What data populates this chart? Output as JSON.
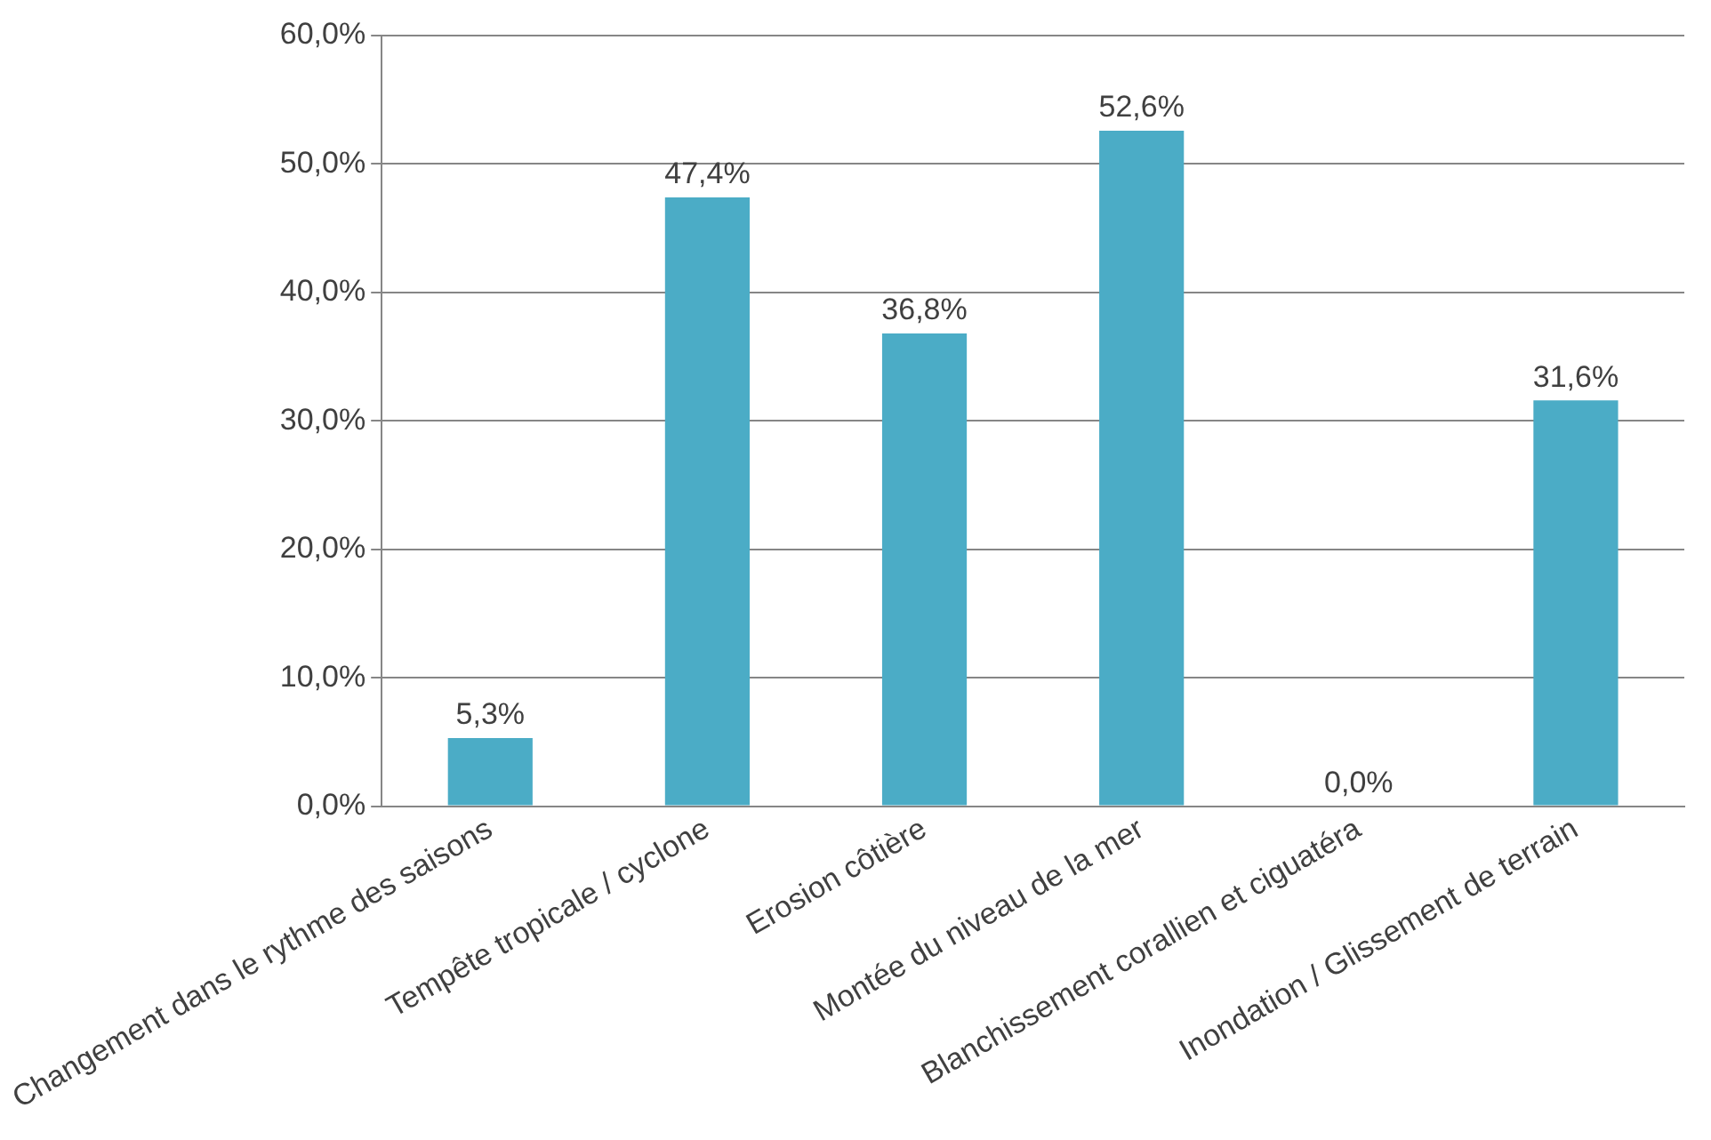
{
  "chart_data": {
    "type": "bar",
    "categories": [
      "Changement dans le rythme des saisons",
      "Tempête tropicale / cyclone",
      "Erosion côtière",
      "Montée du niveau de la mer",
      "Blanchissement corallien et ciguatéra",
      "Inondation / Glissement de terrain"
    ],
    "values": [
      5.3,
      47.4,
      36.8,
      52.6,
      0.0,
      31.6
    ],
    "value_labels": [
      "5,3%",
      "47,4%",
      "36,8%",
      "52,6%",
      "0,0%",
      "31,6%"
    ],
    "color": "#4bacc6",
    "ylim": [
      0,
      60
    ],
    "yticks": [
      {
        "value": 0,
        "label": "0,0%"
      },
      {
        "value": 10,
        "label": "10,0%"
      },
      {
        "value": 20,
        "label": "20,0%"
      },
      {
        "value": 30,
        "label": "30,0%"
      },
      {
        "value": 40,
        "label": "40,0%"
      },
      {
        "value": 50,
        "label": "50,0%"
      },
      {
        "value": 60,
        "label": "60,0%"
      }
    ],
    "grid": "y"
  }
}
